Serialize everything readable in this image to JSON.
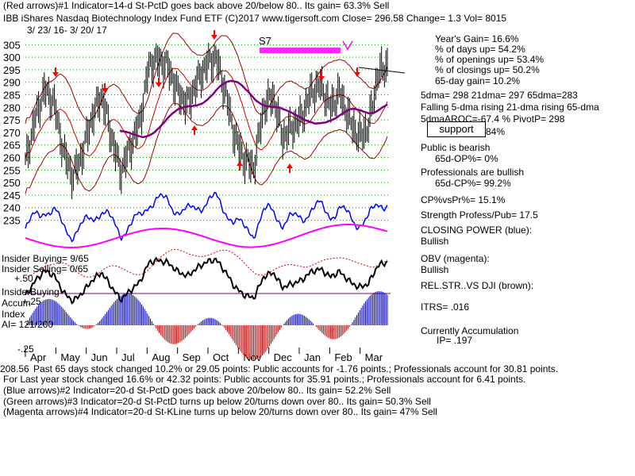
{
  "header": {
    "line1": "(Red arrows)#1 Indicator=14-d St-PctD goes back above 20/below 80.. Its gain= 63.3% Sell",
    "line2": "IBB   iShares Nasdaq Biotechnology Index Fund ETF  (C)2017 www.tigersoft.com     Close=  296.58  Change= 1.3 Vol= 8015",
    "date_range": "3/ 23/ 16-  3/ 20/ 17"
  },
  "stats": {
    "years_gain": "Year's Gain= 16.6%",
    "days_up": "% of days up= 54.2%",
    "openings_up": "% of openings up= 53.4%",
    "closings_up": "% of closings up= 50.2%",
    "gain65": "65-day gain= 10.2%",
    "dma": "5dma= 298 21dma= 297 65dma=283",
    "falling": "Falling 5-dma rising 21-dma rising 65-dma",
    "roc": "5dmaAROC=-67.4 %  PivotP= 298",
    "support": "support",
    "support_tail": "84%",
    "public": "Public is bearish",
    "public_op": "65d-OP%= 0%",
    "pros": "Professionals are bullish",
    "pros_cp": "65d-CP%= 99.2%",
    "cp_vs_pr": "CP%vsPr%=  15.1%",
    "strength": "Strength Profess/Pub= 17.5",
    "closing_power": "CLOSING POWER (blue):",
    "closing_power_val": "Bullish",
    "obv": "OBV (magenta):",
    "obv_val": "Bullish",
    "relstr": "REL.STR..VS DJI (brown):",
    "itrs": "ITRS= .016",
    "accum": "Currently Accumulation",
    "ip": "IP=  .197"
  },
  "lower_labels": {
    "insider_buying": "Insider Buying= 9/65",
    "insider_selling": "Insider Selling= 0/65",
    "plus50": "+.50",
    "insider2": "InsiderBuying",
    "accum": "Accum",
    "plus25": "+.25",
    "index": "Index",
    "ai": "AI= 121/200",
    "minus25": "-.25"
  },
  "footer": {
    "line1": "Past 65 days stock changed  10.2% or  29.05 points:  Public accounts for -1.76 points.;  Professionals account for  30.81 points.",
    "line1_prefix": "208.56",
    "line2": "For Last year stock changed  16.6% or  42.32 points:  Public accounts for  35.91 points.;  Professionals account for  6.41 points.",
    "line3": "(Blue arrows)#2 Indicator=20-d St-PctD goes back above 20/below 80.. Its gain= 52.2% Sell",
    "line4": "(Green arrows)#3 Indicator=20-d St-PctD turns up below 20/turns down over 80.. Its gain= 50.3% Sell",
    "line5": "(Magenta arrows)#4 Indicator=20-d St-KLine turns up below 20/turns down over 80.. Its gain= 47% Sell"
  },
  "chart_data": {
    "type": "line",
    "title": "IBB iShares Nasdaq Biotechnology Index Fund ETF",
    "y_ticks": [
      305,
      300,
      295,
      290,
      285,
      280,
      275,
      270,
      265,
      260,
      255,
      250,
      245,
      240,
      235
    ],
    "ylim": [
      232,
      307
    ],
    "months": [
      "Apr",
      "May",
      "Jun",
      "Jul",
      "Aug",
      "Sep",
      "Oct",
      "Nov",
      "Dec",
      "Jan",
      "Feb",
      "Mar"
    ],
    "annotation": "S7",
    "price_close": [
      258,
      275,
      287,
      282,
      262,
      252,
      262,
      276,
      285,
      269,
      254,
      264,
      274,
      297,
      299,
      296,
      286,
      281,
      290,
      297,
      300,
      286,
      268,
      259,
      256,
      280,
      285,
      268,
      272,
      276,
      286,
      289,
      280,
      286,
      275,
      268,
      272,
      293,
      297
    ]
  }
}
